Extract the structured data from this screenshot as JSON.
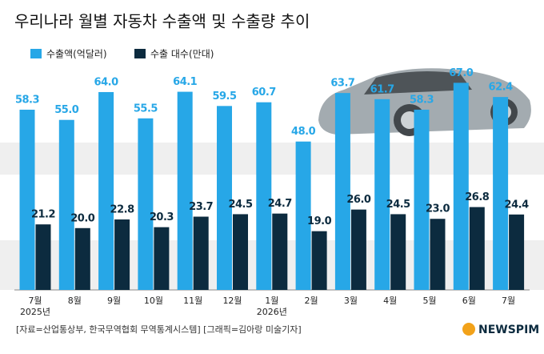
{
  "chart_data": {
    "type": "bar",
    "title": "우리나라 월별 자동차 수출액 및 수출량 추이",
    "categories": [
      "7월",
      "8월",
      "9월",
      "10월",
      "11월",
      "12월",
      "1월",
      "2월",
      "3월",
      "4월",
      "5월",
      "6월",
      "7월"
    ],
    "year_labels": [
      "2025년",
      null,
      null,
      null,
      null,
      null,
      "2026년",
      null,
      null,
      null,
      null,
      null,
      null
    ],
    "series": [
      {
        "name": "수출액(억달러)",
        "color": "#27a7e7",
        "values": [
          58.3,
          55.0,
          64.0,
          55.5,
          64.1,
          59.5,
          60.7,
          48.0,
          63.7,
          61.7,
          58.3,
          67.0,
          62.4
        ],
        "value_labels": [
          "58.3",
          "55.0",
          "64.0",
          "55.5",
          "64.1",
          "59.5",
          "60.7",
          "48.0",
          "63.7",
          "61.7",
          "58.3",
          "67.0",
          "62.4"
        ]
      },
      {
        "name": "수출 대수(만대)",
        "color": "#0c2b3f",
        "values": [
          21.2,
          20.0,
          22.8,
          20.3,
          23.7,
          24.5,
          24.7,
          19.0,
          26.0,
          24.5,
          23.0,
          26.8,
          24.4
        ],
        "value_labels": [
          "21.2",
          "20.0",
          "22.8",
          "20.3",
          "23.7",
          "24.5",
          "24.7",
          "19.0",
          "26.0",
          "24.5",
          "23.0",
          "26.8",
          "24.4"
        ]
      }
    ],
    "source": "[자료=산업통상부, 한국무역협회 무역통계시스템] [그래픽=김아랑 미술기자]",
    "logo": "NEWSPIM"
  }
}
